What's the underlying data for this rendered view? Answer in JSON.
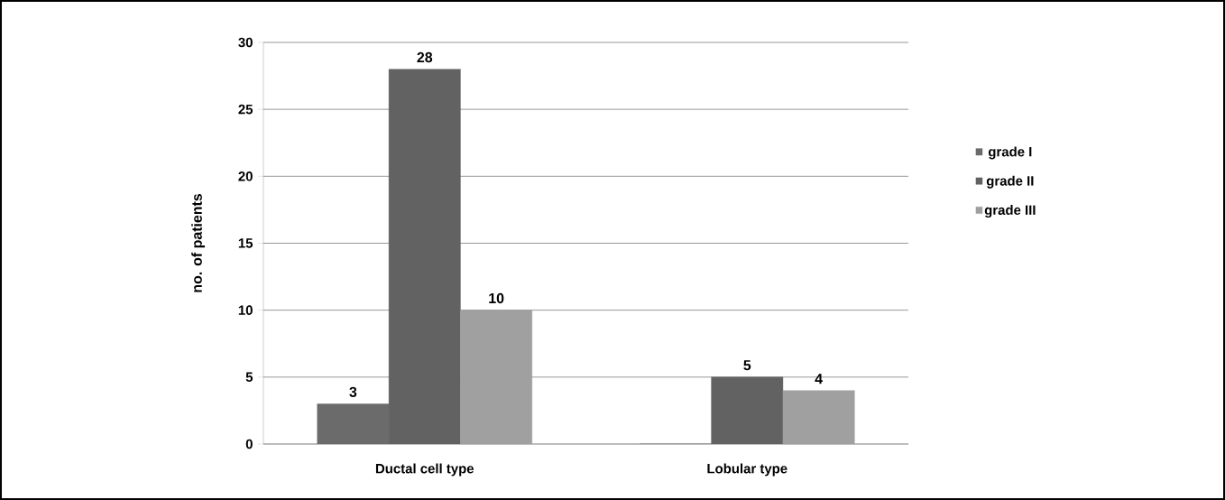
{
  "chart_data": {
    "type": "bar",
    "ylabel": "no. of patients",
    "categories": [
      "Ductal cell type",
      "Lobular type"
    ],
    "series": [
      {
        "name": "grade I",
        "color": "#6b6b6b",
        "values": [
          3,
          0
        ],
        "value_labels": [
          "3",
          null
        ]
      },
      {
        "name": "grade II",
        "color": "#626262",
        "values": [
          28,
          5
        ],
        "value_labels": [
          "28",
          "5"
        ]
      },
      {
        "name": "grade III",
        "color": "#a0a0a0",
        "values": [
          10,
          4
        ],
        "value_labels": [
          "10",
          "4"
        ]
      }
    ],
    "ylim": [
      0,
      30
    ],
    "yticks": [
      0,
      5,
      10,
      15,
      20,
      25,
      30
    ],
    "grid": "y",
    "legend": "right"
  }
}
